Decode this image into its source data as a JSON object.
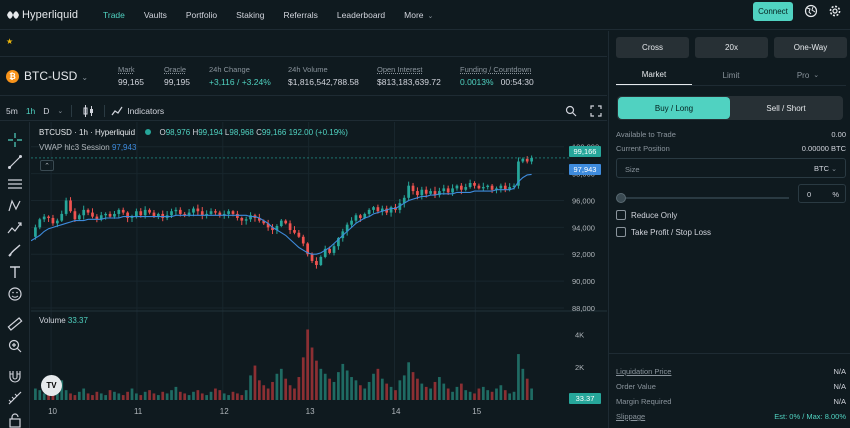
{
  "nav": {
    "logo_text": "Hyperliquid",
    "items": [
      "Trade",
      "Vaults",
      "Portfolio",
      "Staking",
      "Referrals",
      "Leaderboard",
      "More"
    ],
    "active": "Trade",
    "connect_label": "Connect"
  },
  "favorites": {
    "star": "★"
  },
  "market": {
    "coin_glyph": "₿",
    "pair": "BTC-USD",
    "stats": [
      {
        "label": "Mark",
        "value": "99,165"
      },
      {
        "label": "Oracle",
        "value": "99,195"
      },
      {
        "label": "24h Change",
        "value": "+3,116 / +3.24%"
      },
      {
        "label": "24h Volume",
        "value": "$1,816,542,788.58"
      },
      {
        "label": "Open Interest",
        "value": "$813,183,639.72"
      },
      {
        "label": "Funding / Countdown",
        "value": "0.0013%",
        "value2": "00:54:30"
      }
    ]
  },
  "chart_toolbar": {
    "timeframes": [
      "5m",
      "1h",
      "D"
    ],
    "active_timeframe": "1h",
    "indicators_label": "Indicators"
  },
  "chart": {
    "symbol": "BTCUSD · 1h · Hyperliquid",
    "ohlc": {
      "o_label": "O",
      "o": "98,976",
      "h_label": "H",
      "h": "99,194",
      "l_label": "L",
      "l": "98,968",
      "c_label": "C",
      "c": "99,166",
      "chg": "192.00 (+0.19%)"
    },
    "vwap_label": "VWAP hlc3 Session",
    "vwap_value": "97,943",
    "volume_label": "Volume",
    "volume_value": "33.37",
    "last_price_tag": "99,166",
    "vwap_tag": "97,943",
    "volume_tag": "33.37",
    "tv_logo": "TV",
    "colors": {
      "up": "#26a69a",
      "down": "#ef5350",
      "vwap": "#3e8bdc",
      "accent": "#50d2c1"
    }
  },
  "chart_data": {
    "type": "candlestick",
    "title": "BTCUSD · 1h · Hyperliquid",
    "price_ticks": [
      "100,000",
      "98,000",
      "96,000",
      "94,000",
      "92,000",
      "90,000",
      "88,000"
    ],
    "price_tick_values": [
      100000,
      98000,
      96000,
      94000,
      92000,
      90000,
      88000
    ],
    "ylim": [
      88000,
      100500
    ],
    "volume_ticks": [
      "4K",
      "2K"
    ],
    "volume_tick_values": [
      4000,
      2000
    ],
    "volume_ylim": [
      0,
      5000
    ],
    "x_ticks": [
      "10",
      "11",
      "12",
      "13",
      "14",
      "15"
    ],
    "x_tick_positions": [
      0.02,
      0.19,
      0.36,
      0.53,
      0.7,
      0.86
    ],
    "price_path": [
      93300,
      94000,
      94600,
      94800,
      94700,
      94300,
      94500,
      95000,
      96000,
      95200,
      94600,
      94900,
      95300,
      95100,
      94800,
      94600,
      94900,
      95000,
      94800,
      95000,
      95300,
      95100,
      94700,
      94800,
      95200,
      94900,
      95300,
      95100,
      94800,
      95000,
      94700,
      94900,
      95200,
      95300,
      95000,
      94900,
      95100,
      95400,
      95200,
      94900,
      95000,
      95200,
      95100,
      94900,
      95000,
      95200,
      95000,
      94700,
      94500,
      94600,
      94900,
      94700,
      94500,
      94300,
      94000,
      93800,
      94100,
      94500,
      94300,
      93800,
      93600,
      93300,
      92800,
      92000,
      91500,
      91200,
      91800,
      92400,
      92100,
      92600,
      93200,
      93700,
      94200,
      94500,
      94900,
      94700,
      95000,
      95300,
      95500,
      95200,
      95400,
      95100,
      95500,
      95300,
      95800,
      96200,
      97100,
      96700,
      96400,
      96800,
      96500,
      96700,
      96400,
      96700,
      96900,
      96600,
      96900,
      97100,
      96800,
      97000,
      97300,
      97100,
      96900,
      97000,
      97100,
      96800,
      96900,
      97100,
      96800,
      97000,
      97100,
      98900,
      99100,
      98900,
      99166
    ],
    "vwap_path": [
      93000,
      93200,
      93400,
      93700,
      93900,
      94000,
      94100,
      94200,
      94300,
      94400,
      94500,
      94500,
      94500,
      94600,
      94600,
      94600,
      94600,
      94700,
      94700,
      94700,
      94700,
      94800,
      94800,
      94800,
      94800,
      94800,
      94800,
      94800,
      94800,
      94800,
      94800,
      94800,
      94800,
      94900,
      94900,
      94900,
      94900,
      94900,
      94900,
      94900,
      94900,
      94900,
      94900,
      94900,
      94900,
      94900,
      94900,
      94900,
      94900,
      94900,
      94800,
      94800,
      94700,
      94500,
      94300,
      94000,
      93800,
      93600,
      93400,
      93100,
      92800,
      92500,
      92300,
      92100,
      92000,
      92000,
      92100,
      92300,
      92500,
      92800,
      93100,
      93400,
      93700,
      94000,
      94300,
      94500,
      94700,
      94800,
      95000,
      95100,
      95200,
      95300,
      95400,
      95400,
      95600,
      95800,
      96000,
      96100,
      96200,
      96300,
      96300,
      96400,
      96400,
      96500,
      96500,
      96500,
      96500,
      96600,
      96600,
      96600,
      96600,
      96700,
      96700,
      96700,
      96700,
      96700,
      96800,
      96800,
      96800,
      96800,
      96900,
      97400,
      97700,
      97900,
      97943
    ],
    "volume": [
      500,
      700,
      600,
      400,
      300,
      500,
      800,
      1200,
      600,
      400,
      300,
      500,
      700,
      400,
      300,
      500,
      400,
      300,
      600,
      500,
      400,
      300,
      500,
      700,
      400,
      300,
      500,
      600,
      400,
      300,
      500,
      400,
      600,
      800,
      500,
      400,
      300,
      500,
      600,
      400,
      300,
      500,
      700,
      600,
      400,
      300,
      500,
      400,
      300,
      600,
      1500,
      2100,
      1200,
      900,
      700,
      1100,
      1600,
      1900,
      1300,
      900,
      700,
      1400,
      2600,
      4300,
      3200,
      2400,
      1900,
      1600,
      1300,
      1100,
      1700,
      2200,
      1800,
      1400,
      1200,
      900,
      700,
      1100,
      1600,
      1900,
      1300,
      1000,
      800,
      600,
      1200,
      1500,
      2300,
      1700,
      1300,
      1000,
      800,
      700,
      1100,
      1400,
      1000,
      700,
      500,
      800,
      1000,
      600,
      500,
      400,
      700,
      800,
      600,
      500,
      700,
      900,
      600,
      400,
      500,
      2800,
      1900,
      1300,
      700
    ]
  },
  "order_panel": {
    "margin_mode": "Cross",
    "leverage": "20x",
    "position_mode": "One-Way",
    "tabs": [
      "Market",
      "Limit",
      "Pro"
    ],
    "active_tab": "Market",
    "buy_label": "Buy / Long",
    "sell_label": "Sell / Short",
    "available_label": "Available to Trade",
    "available_value": "0.00",
    "current_position_label": "Current Position",
    "current_position_value": "0.00000 BTC",
    "size_placeholder": "Size",
    "size_unit": "BTC",
    "percent_value": "0",
    "percent_sign": "%",
    "reduce_only_label": "Reduce Only",
    "tpsl_label": "Take Profit / Stop Loss",
    "liquidation_label": "Liquidation Price",
    "liquidation_value": "N/A",
    "order_value_label": "Order Value",
    "order_value_value": "N/A",
    "margin_required_label": "Margin Required",
    "margin_required_value": "N/A",
    "slippage_label": "Slippage",
    "slippage_value": "Est: 0% / Max: 8.00%"
  }
}
